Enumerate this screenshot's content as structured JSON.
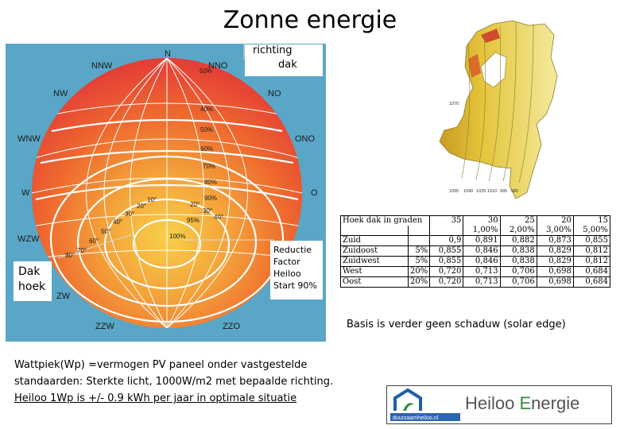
{
  "title": "Zonne energie",
  "annotations": {
    "richting_line1": "richting",
    "richting_line2": "dak",
    "dak_line1": "Dak",
    "dak_line2": "hoek",
    "reductie_lines": [
      "Reductie",
      "Factor",
      "Heiloo",
      "Start 90%"
    ]
  },
  "sun_chart": {
    "compass": {
      "n": "N",
      "nnw": "NNW",
      "nno": "NNO",
      "nw": "NW",
      "no": "NO",
      "wnw": "WNW",
      "ono": "ONO",
      "w": "W",
      "o": "O",
      "wzw": "WZW",
      "zw": "ZW",
      "zzw": "ZZW",
      "zzo": "ZZO"
    },
    "ring_labels": [
      "50%",
      "40%",
      "50%",
      "60%",
      "70%",
      "80%",
      "90%",
      "95%",
      "100%"
    ],
    "angle_labels": [
      "20°",
      "30°",
      "40°",
      "50°",
      "60°",
      "70°",
      "80°",
      "20°",
      "30°",
      "40°",
      "10°"
    ],
    "colors": {
      "sky": "#5aa6c6",
      "top": "#e0393c",
      "mid": "#f07a2a",
      "center": "#f6c63a"
    }
  },
  "map": {
    "contour_labels": [
      "1070",
      "1055",
      "1040",
      "1025",
      "1010",
      "995",
      "980"
    ],
    "colors": {
      "light": "#f1e58e",
      "mid": "#e3c43a",
      "dark": "#c99a22",
      "sea": "#ffffff"
    }
  },
  "table": {
    "header_label": "Hoek dak in graden",
    "angles": [
      "35",
      "30",
      "25",
      "20",
      "15"
    ],
    "step_pct": [
      "",
      "1,00%",
      "2,00%",
      "3,00%",
      "5,00%"
    ],
    "rows": [
      {
        "dir": "Zuid",
        "pct": "",
        "values": [
          "0,9",
          "0,891",
          "0,882",
          "0,873",
          "0,855"
        ]
      },
      {
        "dir": "Zuidoost",
        "pct": "5%",
        "values": [
          "0,855",
          "0,846",
          "0,838",
          "0,829",
          "0,812"
        ]
      },
      {
        "dir": "Zuidwest",
        "pct": "5%",
        "values": [
          "0,855",
          "0,846",
          "0,838",
          "0,829",
          "0,812"
        ]
      },
      {
        "dir": "West",
        "pct": "20%",
        "values": [
          "0,720",
          "0,713",
          "0,706",
          "0,698",
          "0,684"
        ]
      },
      {
        "dir": "Oost",
        "pct": "20%",
        "values": [
          "0,720",
          "0,713",
          "0,706",
          "0,698",
          "0,684"
        ]
      }
    ]
  },
  "basis_text": "Basis is verder geen schaduw (solar edge)",
  "wattpiek": {
    "line1": "Wattpiek(Wp) =vermogen PV paneel onder vastgestelde",
    "line2": "standaarden: Sterkte licht, 1000W/m2  met bepaalde richting.",
    "line3": "Heiloo 1Wp is +/-  0.9 kWh per jaar in optimale situatie"
  },
  "logo": {
    "site": "duurzaamheiloo.nl",
    "word1": "Heiloo ",
    "word2_initial": "E",
    "word2_rest": "nergie"
  }
}
